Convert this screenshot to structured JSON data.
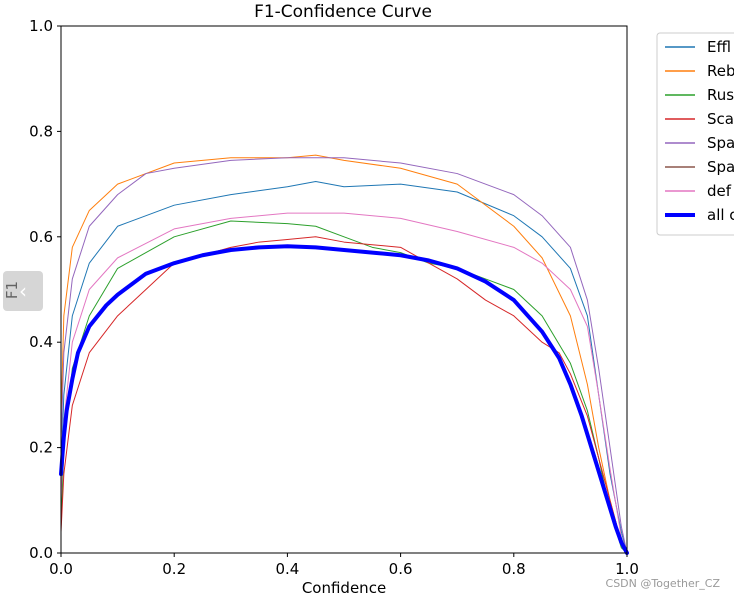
{
  "chart_data": {
    "type": "line",
    "title": "F1-Confidence Curve",
    "xlabel": "Confidence",
    "ylabel": "F1",
    "xlim": [
      0,
      1
    ],
    "ylim": [
      0,
      1
    ],
    "xticks": [
      "0.0",
      "0.2",
      "0.4",
      "0.6",
      "0.8",
      "1.0"
    ],
    "yticks": [
      "0.0",
      "0.2",
      "0.4",
      "0.6",
      "0.8",
      "1.0"
    ],
    "legend_position": "top-right outside",
    "series": [
      {
        "name": "Effl",
        "color": "#1f77b4",
        "width": 1,
        "x": [
          0,
          0.005,
          0.02,
          0.05,
          0.1,
          0.2,
          0.3,
          0.4,
          0.45,
          0.5,
          0.6,
          0.7,
          0.8,
          0.85,
          0.9,
          0.93,
          0.95,
          0.97,
          0.99,
          1.0
        ],
        "y": [
          0.15,
          0.3,
          0.45,
          0.55,
          0.62,
          0.66,
          0.68,
          0.695,
          0.705,
          0.695,
          0.7,
          0.685,
          0.64,
          0.6,
          0.54,
          0.45,
          0.3,
          0.15,
          0.04,
          0.0
        ]
      },
      {
        "name": "Reb",
        "color": "#ff7f0e",
        "width": 1,
        "x": [
          0,
          0.005,
          0.02,
          0.05,
          0.1,
          0.2,
          0.3,
          0.4,
          0.45,
          0.5,
          0.6,
          0.7,
          0.8,
          0.85,
          0.9,
          0.93,
          0.95,
          0.97,
          0.99,
          1.0
        ],
        "y": [
          0.25,
          0.45,
          0.58,
          0.65,
          0.7,
          0.74,
          0.75,
          0.75,
          0.755,
          0.745,
          0.73,
          0.7,
          0.62,
          0.56,
          0.45,
          0.32,
          0.2,
          0.1,
          0.02,
          0.0
        ]
      },
      {
        "name": "Rus",
        "color": "#2ca02c",
        "width": 1,
        "x": [
          0,
          0.005,
          0.02,
          0.05,
          0.1,
          0.2,
          0.3,
          0.4,
          0.45,
          0.5,
          0.55,
          0.6,
          0.65,
          0.7,
          0.75,
          0.8,
          0.85,
          0.9,
          0.93,
          0.95,
          0.97,
          0.99,
          1.0
        ],
        "y": [
          0.05,
          0.2,
          0.35,
          0.45,
          0.54,
          0.6,
          0.63,
          0.625,
          0.62,
          0.6,
          0.58,
          0.57,
          0.55,
          0.54,
          0.52,
          0.5,
          0.45,
          0.36,
          0.27,
          0.18,
          0.08,
          0.01,
          0.0
        ]
      },
      {
        "name": "Sca",
        "color": "#d62728",
        "width": 1,
        "x": [
          0,
          0.005,
          0.02,
          0.05,
          0.1,
          0.15,
          0.2,
          0.3,
          0.35,
          0.4,
          0.45,
          0.5,
          0.55,
          0.6,
          0.65,
          0.7,
          0.75,
          0.8,
          0.85,
          0.88,
          0.9,
          0.93,
          0.95,
          0.97,
          0.99,
          1.0
        ],
        "y": [
          0.04,
          0.15,
          0.28,
          0.38,
          0.45,
          0.5,
          0.55,
          0.58,
          0.59,
          0.595,
          0.6,
          0.59,
          0.585,
          0.58,
          0.55,
          0.52,
          0.48,
          0.45,
          0.4,
          0.38,
          0.34,
          0.26,
          0.18,
          0.1,
          0.02,
          0.0
        ]
      },
      {
        "name": "Spa",
        "color": "#9467bd",
        "width": 1,
        "x": [
          0,
          0.005,
          0.02,
          0.05,
          0.1,
          0.15,
          0.2,
          0.3,
          0.4,
          0.5,
          0.6,
          0.7,
          0.8,
          0.85,
          0.9,
          0.93,
          0.95,
          0.97,
          0.99,
          1.0
        ],
        "y": [
          0.2,
          0.38,
          0.52,
          0.62,
          0.68,
          0.72,
          0.73,
          0.745,
          0.75,
          0.75,
          0.74,
          0.72,
          0.68,
          0.64,
          0.58,
          0.48,
          0.35,
          0.2,
          0.05,
          0.0
        ]
      },
      {
        "name": "Spa",
        "color": "#8c564b",
        "width": 1,
        "x": [
          0,
          1.0
        ],
        "y": [
          0.0,
          0.0
        ]
      },
      {
        "name": "def",
        "color": "#e377c2",
        "width": 1,
        "x": [
          0,
          0.005,
          0.02,
          0.05,
          0.1,
          0.2,
          0.3,
          0.4,
          0.5,
          0.6,
          0.7,
          0.8,
          0.85,
          0.9,
          0.93,
          0.95,
          0.97,
          0.99,
          1.0
        ],
        "y": [
          0.1,
          0.25,
          0.4,
          0.5,
          0.56,
          0.615,
          0.635,
          0.645,
          0.645,
          0.635,
          0.61,
          0.58,
          0.55,
          0.5,
          0.43,
          0.3,
          0.16,
          0.03,
          0.0
        ]
      },
      {
        "name": "all c",
        "color": "#0000ff",
        "width": 4,
        "x": [
          0,
          0.005,
          0.01,
          0.02,
          0.03,
          0.05,
          0.08,
          0.1,
          0.15,
          0.2,
          0.25,
          0.3,
          0.35,
          0.4,
          0.45,
          0.5,
          0.55,
          0.6,
          0.65,
          0.7,
          0.75,
          0.8,
          0.85,
          0.88,
          0.9,
          0.92,
          0.94,
          0.96,
          0.98,
          0.99,
          1.0
        ],
        "y": [
          0.15,
          0.22,
          0.27,
          0.33,
          0.38,
          0.43,
          0.47,
          0.49,
          0.53,
          0.55,
          0.565,
          0.575,
          0.58,
          0.582,
          0.58,
          0.575,
          0.57,
          0.565,
          0.555,
          0.54,
          0.515,
          0.48,
          0.42,
          0.37,
          0.32,
          0.26,
          0.19,
          0.12,
          0.05,
          0.02,
          0.0
        ]
      }
    ]
  },
  "watermark": "CSDN @Together_CZ",
  "nav": {
    "symbol": "‹"
  }
}
